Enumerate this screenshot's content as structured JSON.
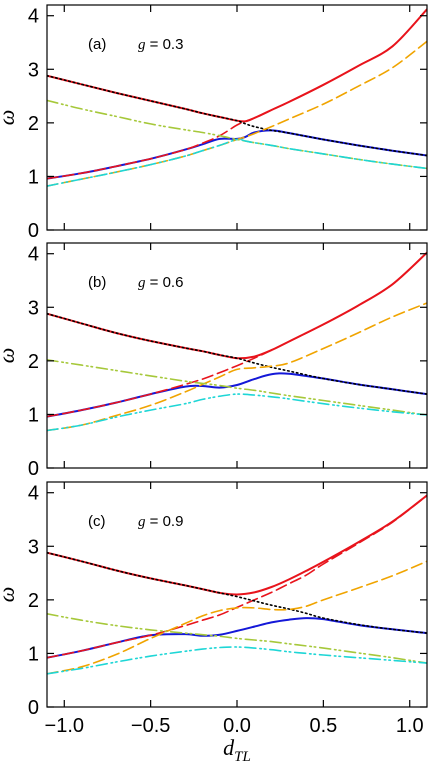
{
  "colors": {
    "red": "#e8141c",
    "blue": "#1418d8",
    "orange": "#f0a400",
    "yellowgreen": "#a6c83a",
    "cyan": "#1ed6d6",
    "black": "#000000"
  },
  "chart_data": [
    {
      "type": "line",
      "panel_label": "(a)",
      "param_symbol": "g",
      "param_text": " = 0.3",
      "xlabel": "",
      "ylabel": "ω",
      "xlim": [
        -1.1,
        1.1
      ],
      "ylim": [
        0,
        4.2
      ],
      "xticks": [
        -1.0,
        -0.5,
        0.0,
        0.5,
        1.0
      ],
      "xtick_labels": [
        "",
        "",
        "",
        "",
        ""
      ],
      "yticks": [
        0,
        1,
        2,
        3,
        4
      ],
      "ytick_labels": [
        "0",
        "1",
        "2",
        "3",
        "4"
      ],
      "x": [
        -1.1,
        -0.9,
        -0.7,
        -0.5,
        -0.3,
        -0.2,
        -0.1,
        0.0,
        0.05,
        0.1,
        0.2,
        0.3,
        0.5,
        0.7,
        0.9,
        1.1
      ],
      "series": [
        {
          "color": "red",
          "style": "solid",
          "values": [
            2.88,
            2.72,
            2.56,
            2.41,
            2.26,
            2.18,
            2.11,
            2.04,
            2.03,
            2.09,
            2.24,
            2.39,
            2.71,
            3.06,
            3.43,
            4.12
          ]
        },
        {
          "color": "blue",
          "style": "solid",
          "values": [
            0.96,
            1.06,
            1.19,
            1.33,
            1.5,
            1.6,
            1.7,
            1.7,
            1.74,
            1.82,
            1.86,
            1.81,
            1.69,
            1.58,
            1.48,
            1.39
          ]
        },
        {
          "color": "red",
          "style": "dashed",
          "values": [
            0.96,
            1.06,
            1.19,
            1.33,
            1.5,
            1.62,
            1.76,
            1.96,
            2.03,
            2.09,
            2.24,
            2.39,
            2.71,
            3.06,
            3.43,
            4.12
          ]
        },
        {
          "color": "black",
          "style": "dotted",
          "values": [
            2.88,
            2.72,
            2.56,
            2.41,
            2.26,
            2.18,
            2.11,
            2.04,
            1.98,
            1.93,
            1.86,
            1.81,
            1.69,
            1.58,
            1.48,
            1.39
          ]
        },
        {
          "color": "orange",
          "style": "dashed",
          "values": [
            0.82,
            0.95,
            1.08,
            1.22,
            1.38,
            1.48,
            1.58,
            1.69,
            1.74,
            1.8,
            1.93,
            2.07,
            2.35,
            2.68,
            3.03,
            3.52
          ]
        },
        {
          "color": "yellowgreen",
          "style": "dashdot",
          "values": [
            2.42,
            2.26,
            2.12,
            1.98,
            1.87,
            1.82,
            1.76,
            1.69,
            1.66,
            1.63,
            1.58,
            1.52,
            1.42,
            1.32,
            1.23,
            1.15
          ]
        },
        {
          "color": "cyan",
          "style": "dashdot",
          "values": [
            0.82,
            0.95,
            1.08,
            1.22,
            1.38,
            1.48,
            1.58,
            1.69,
            1.66,
            1.63,
            1.58,
            1.52,
            1.42,
            1.32,
            1.23,
            1.15
          ]
        }
      ]
    },
    {
      "type": "line",
      "panel_label": "(b)",
      "param_symbol": "g",
      "param_text": " = 0.6",
      "xlabel": "",
      "ylabel": "ω",
      "xlim": [
        -1.1,
        1.1
      ],
      "ylim": [
        0,
        4.2
      ],
      "xticks": [
        -1.0,
        -0.5,
        0.0,
        0.5,
        1.0
      ],
      "xtick_labels": [
        "",
        "",
        "",
        "",
        ""
      ],
      "yticks": [
        0,
        1,
        2,
        3,
        4
      ],
      "ytick_labels": [
        "0",
        "1",
        "2",
        "3",
        "4"
      ],
      "x": [
        -1.1,
        -0.9,
        -0.7,
        -0.5,
        -0.3,
        -0.2,
        -0.1,
        0.0,
        0.1,
        0.2,
        0.3,
        0.5,
        0.7,
        0.9,
        1.1
      ],
      "series": [
        {
          "color": "red",
          "style": "solid",
          "values": [
            2.88,
            2.7,
            2.52,
            2.37,
            2.24,
            2.18,
            2.11,
            2.05,
            2.08,
            2.2,
            2.36,
            2.68,
            3.03,
            3.43,
            4.02
          ]
        },
        {
          "color": "blue",
          "style": "solid",
          "values": [
            0.96,
            1.08,
            1.22,
            1.38,
            1.52,
            1.53,
            1.5,
            1.55,
            1.66,
            1.75,
            1.76,
            1.67,
            1.56,
            1.47,
            1.38
          ]
        },
        {
          "color": "red",
          "style": "dashed",
          "values": [
            0.96,
            1.08,
            1.22,
            1.38,
            1.56,
            1.66,
            1.78,
            1.91,
            2.05,
            2.2,
            2.36,
            2.68,
            3.03,
            3.43,
            4.02
          ]
        },
        {
          "color": "black",
          "style": "dotted",
          "values": [
            2.88,
            2.7,
            2.52,
            2.37,
            2.24,
            2.18,
            2.11,
            2.05,
            1.96,
            1.88,
            1.81,
            1.67,
            1.56,
            1.47,
            1.38
          ]
        },
        {
          "color": "orange",
          "style": "dashed",
          "values": [
            0.7,
            0.8,
            0.98,
            1.17,
            1.42,
            1.56,
            1.7,
            1.84,
            1.87,
            1.9,
            1.96,
            2.23,
            2.52,
            2.82,
            3.08
          ]
        },
        {
          "color": "yellowgreen",
          "style": "dashdot",
          "values": [
            2.02,
            1.92,
            1.82,
            1.72,
            1.62,
            1.58,
            1.54,
            1.49,
            1.45,
            1.4,
            1.35,
            1.26,
            1.17,
            1.08,
            0.99
          ]
        },
        {
          "color": "cyan",
          "style": "dashdot",
          "values": [
            0.7,
            0.8,
            0.95,
            1.08,
            1.2,
            1.28,
            1.34,
            1.38,
            1.36,
            1.33,
            1.29,
            1.2,
            1.12,
            1.05,
            0.99
          ]
        }
      ]
    },
    {
      "type": "line",
      "panel_label": "(c)",
      "param_symbol": "g",
      "param_text": " = 0.9",
      "xlabel": "dTL",
      "ylabel": "ω",
      "xlim": [
        -1.1,
        1.1
      ],
      "ylim": [
        0,
        4.2
      ],
      "xticks": [
        -1.0,
        -0.5,
        0.0,
        0.5,
        1.0
      ],
      "xtick_labels": [
        "−1.0",
        "−0.5",
        "0.0",
        "0.5",
        "1.0"
      ],
      "yticks": [
        0,
        1,
        2,
        3,
        4
      ],
      "ytick_labels": [
        "0",
        "1",
        "2",
        "3",
        "4"
      ],
      "x": [
        -1.1,
        -0.9,
        -0.7,
        -0.5,
        -0.3,
        -0.2,
        -0.1,
        0.0,
        0.1,
        0.2,
        0.3,
        0.4,
        0.5,
        0.7,
        0.9,
        1.1
      ],
      "series": [
        {
          "color": "red",
          "style": "solid",
          "values": [
            2.88,
            2.72,
            2.55,
            2.4,
            2.27,
            2.2,
            2.13,
            2.1,
            2.14,
            2.24,
            2.38,
            2.54,
            2.71,
            3.07,
            3.46,
            3.95
          ]
        },
        {
          "color": "blue",
          "style": "solid",
          "values": [
            0.92,
            1.05,
            1.2,
            1.34,
            1.36,
            1.33,
            1.35,
            1.42,
            1.5,
            1.58,
            1.63,
            1.66,
            1.64,
            1.53,
            1.45,
            1.38
          ]
        },
        {
          "color": "red",
          "style": "dashed",
          "values": [
            0.92,
            1.05,
            1.2,
            1.34,
            1.52,
            1.62,
            1.72,
            1.86,
            2.0,
            2.14,
            2.3,
            2.46,
            2.67,
            3.05,
            3.45,
            3.95
          ]
        },
        {
          "color": "black",
          "style": "dotted",
          "values": [
            2.88,
            2.72,
            2.55,
            2.4,
            2.27,
            2.2,
            2.13,
            2.06,
            1.98,
            1.9,
            1.83,
            1.75,
            1.66,
            1.54,
            1.45,
            1.38
          ]
        },
        {
          "color": "orange",
          "style": "dashed",
          "values": [
            0.62,
            0.75,
            0.98,
            1.28,
            1.56,
            1.7,
            1.8,
            1.85,
            1.85,
            1.82,
            1.82,
            1.88,
            2.0,
            2.22,
            2.45,
            2.72
          ]
        },
        {
          "color": "yellowgreen",
          "style": "dashdot",
          "values": [
            1.74,
            1.62,
            1.52,
            1.44,
            1.38,
            1.35,
            1.32,
            1.28,
            1.25,
            1.22,
            1.18,
            1.14,
            1.1,
            1.01,
            0.92,
            0.82
          ]
        },
        {
          "color": "cyan",
          "style": "dashdot",
          "values": [
            0.62,
            0.72,
            0.84,
            0.95,
            1.04,
            1.08,
            1.11,
            1.12,
            1.1,
            1.07,
            1.03,
            1.0,
            0.97,
            0.92,
            0.87,
            0.82
          ]
        }
      ]
    }
  ]
}
